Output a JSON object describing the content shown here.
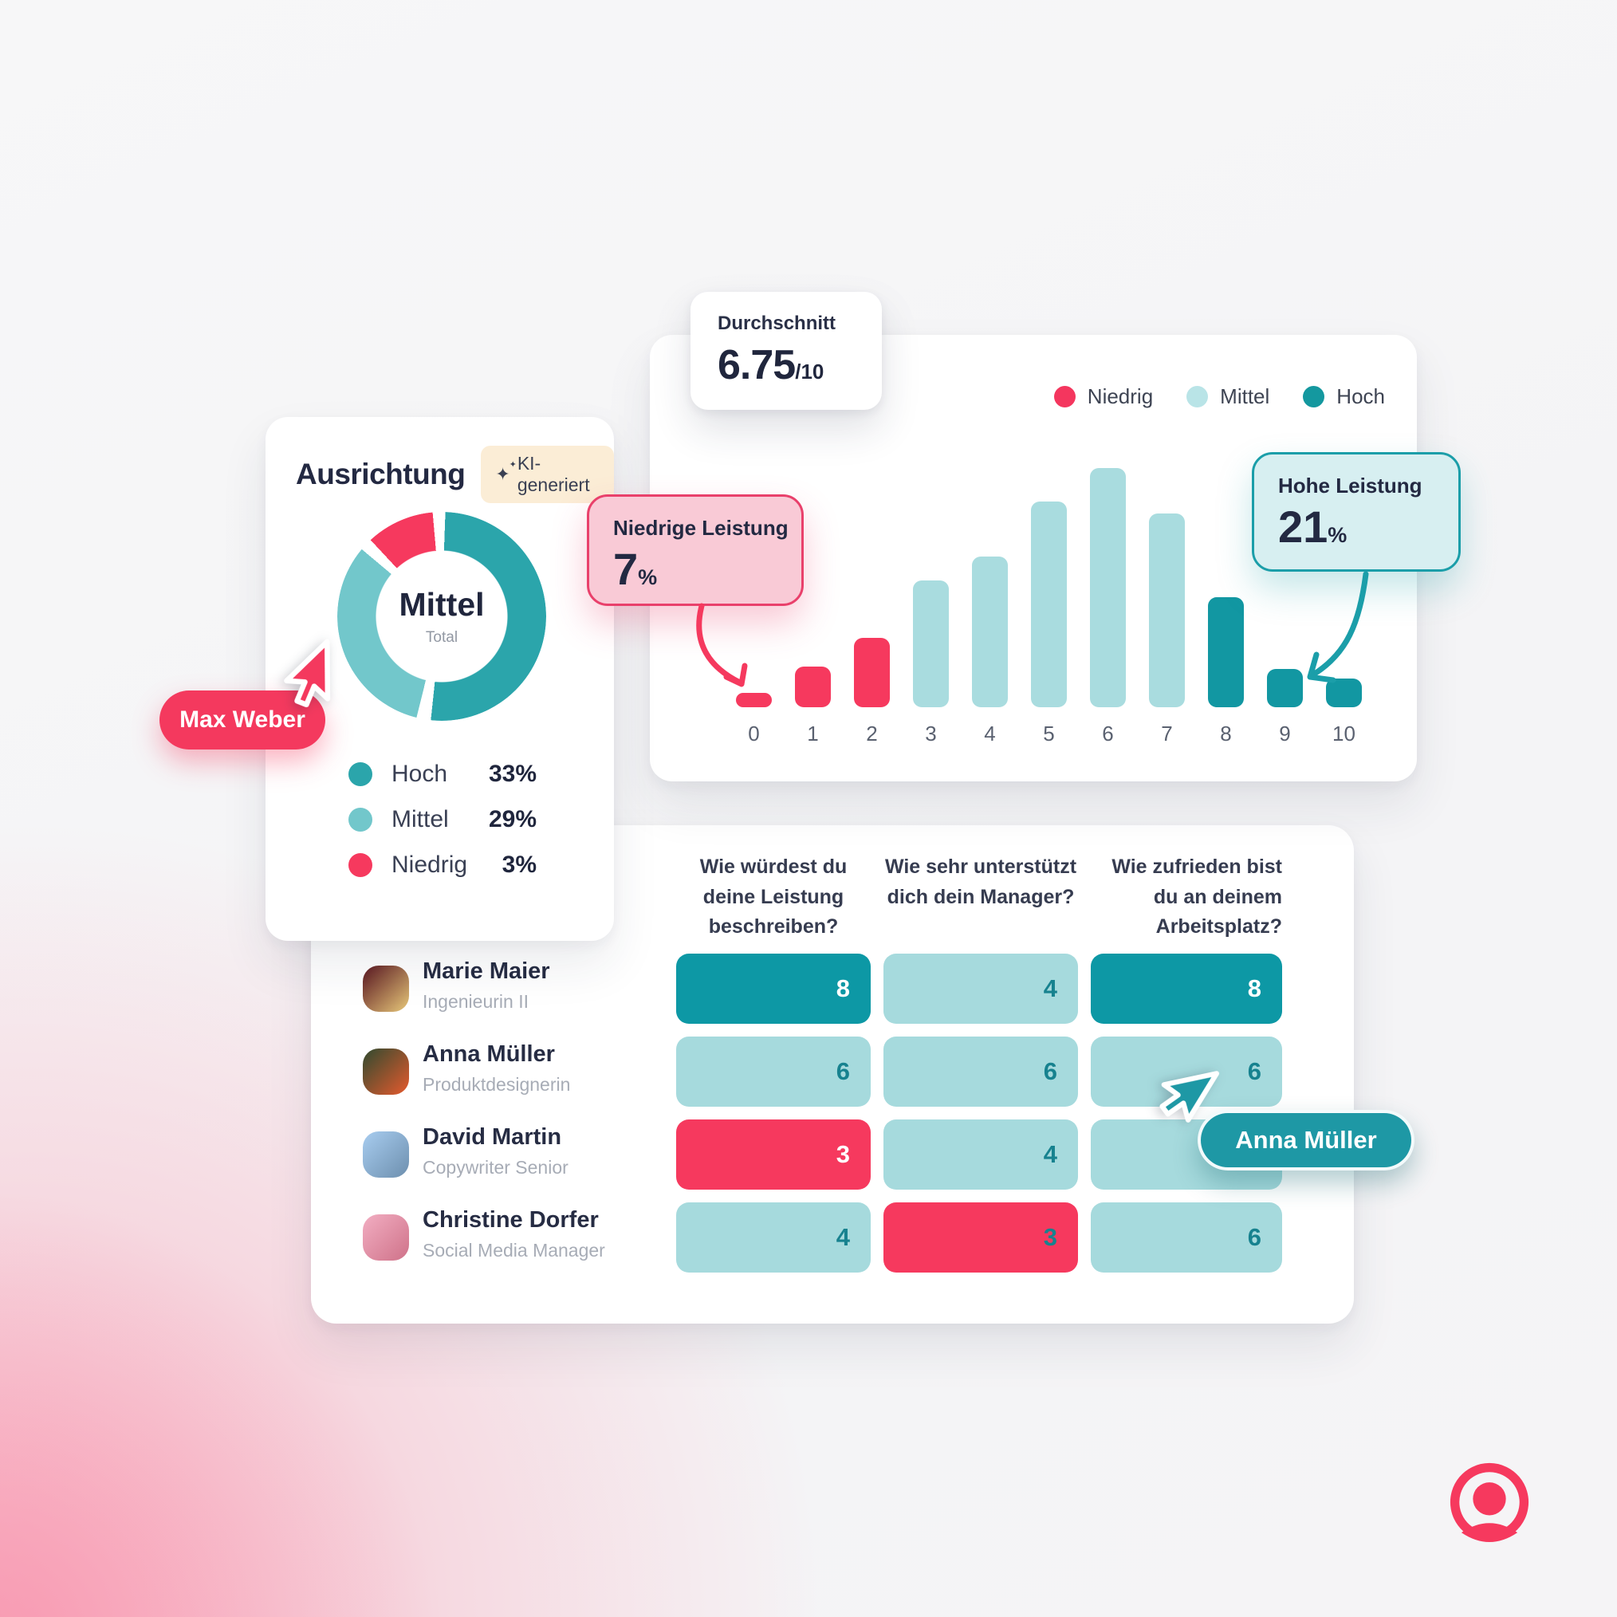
{
  "page": {
    "background": "#F5F5F6",
    "accent_pink": "#F4395E",
    "accent_teal": "#1E98A5"
  },
  "alignment_card": {
    "badge_label": "KI-generiert",
    "badge_icon": "sparkles-icon"
  },
  "cursor_labels": {
    "max_weber": "Max Weber",
    "anna_mueller": "Anna Müller"
  },
  "brand": {
    "logo": "person-in-circle",
    "color": "#F6395E"
  },
  "chart_data": [
    {
      "type": "pie",
      "title": "Ausrichtung",
      "subtype": "donut",
      "center": {
        "label": "Mittel",
        "sublabel": "Total"
      },
      "legend_position": "bottom",
      "segments": [
        {
          "label": "Hoch",
          "value_pct": 33,
          "color": "#2BA5AB",
          "arc_deg": [
            2,
            186
          ]
        },
        {
          "label": "Mittel",
          "value_pct": 29,
          "color": "#72C7CB",
          "arc_deg": [
            194,
            310
          ]
        },
        {
          "label": "Niedrig",
          "value_pct": 3,
          "color": "#F6395E",
          "arc_deg": [
            317,
            355
          ]
        }
      ]
    },
    {
      "type": "bar",
      "title": "",
      "xlabel": "",
      "ylabel": "",
      "grid": false,
      "categories": [
        "0",
        "1",
        "2",
        "3",
        "4",
        "5",
        "6",
        "7",
        "8",
        "9",
        "10"
      ],
      "values_pct_of_max": [
        6,
        17,
        29,
        53,
        63,
        86,
        100,
        81,
        46,
        16,
        12
      ],
      "bar_levels": [
        "niedrig",
        "niedrig",
        "niedrig",
        "mittel",
        "mittel",
        "mittel",
        "mittel",
        "mittel",
        "hoch",
        "hoch",
        "hoch"
      ],
      "level_colors": {
        "niedrig": "#F6395E",
        "mittel": "#A9DCDF",
        "hoch": "#1297A2"
      },
      "legend_position": "top-right",
      "legend": [
        {
          "label": "Niedrig",
          "color": "#F4365E"
        },
        {
          "label": "Mittel",
          "color": "#B9E4E7"
        },
        {
          "label": "Hoch",
          "color": "#14989F"
        }
      ],
      "average_badge": {
        "label": "Durchschnitt",
        "value": "6.75",
        "suffix": "/10"
      },
      "annotations": [
        {
          "label": "Niedrige Leistung",
          "value": "7",
          "unit": "%",
          "target_bar": "0",
          "style": "pink"
        },
        {
          "label": "Hohe Leistung",
          "value": "21",
          "unit": "%",
          "target_bar": "9",
          "style": "teal"
        }
      ]
    },
    {
      "type": "table",
      "columns": [
        "Wie würdest du deine Leistung beschreiben?",
        "Wie sehr unterstützt dich dein Manager?",
        "Wie zufrieden bist du an deinem Arbeitsplatz?"
      ],
      "cell_colors": {
        "hoch": {
          "bg": "#0D98A5",
          "text": "#FFFFFF"
        },
        "mittel": {
          "bg": "#A6DADD",
          "text": "#17828F"
        },
        "niedrig": {
          "bg": "#F6395E",
          "text": "#FFFFFF"
        }
      },
      "rows": [
        {
          "name": "Marie Maier",
          "role": "Ingenieurin II",
          "avatar_colors": [
            "#5a1620",
            "#e7c87a"
          ],
          "scores": [
            {
              "value": "8",
              "level": "hoch"
            },
            {
              "value": "4",
              "level": "mittel"
            },
            {
              "value": "8",
              "level": "hoch"
            }
          ]
        },
        {
          "name": "Anna Müller",
          "role": "Produktdesignerin",
          "avatar_colors": [
            "#2f4a2f",
            "#e65a2e"
          ],
          "scores": [
            {
              "value": "6",
              "level": "mittel"
            },
            {
              "value": "6",
              "level": "mittel"
            },
            {
              "value": "6",
              "level": "mittel"
            }
          ]
        },
        {
          "name": "David Martin",
          "role": "Copywriter Senior",
          "avatar_colors": [
            "#a8cdf0",
            "#6d8fae"
          ],
          "scores": [
            {
              "value": "3",
              "level": "niedrig"
            },
            {
              "value": "4",
              "level": "mittel"
            },
            {
              "value": "",
              "level": "mittel"
            }
          ]
        },
        {
          "name": "Christine Dorfer",
          "role": "Social Media Manager",
          "avatar_colors": [
            "#f2aec2",
            "#cf7289"
          ],
          "scores": [
            {
              "value": "4",
              "level": "mittel"
            },
            {
              "value": "3",
              "level": "niedrig",
              "text": "#17828F"
            },
            {
              "value": "6",
              "level": "mittel"
            }
          ]
        }
      ]
    }
  ]
}
